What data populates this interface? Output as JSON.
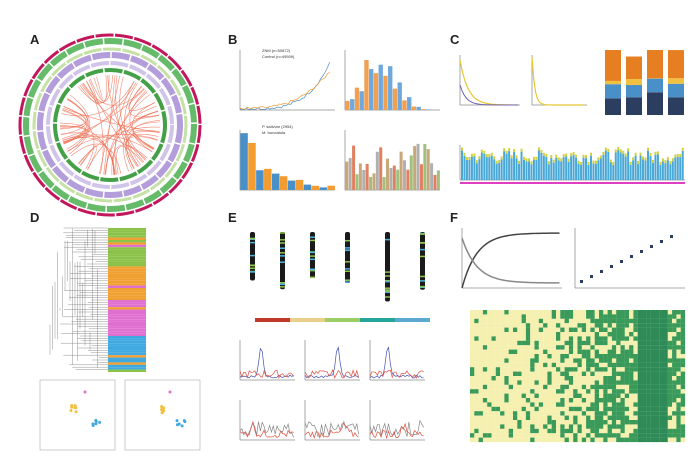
{
  "panels": [
    {
      "label": "A"
    },
    {
      "label": "B",
      "legends": [
        "ZNM (n=50872)",
        "Control (n=49509)",
        "P. sativum (2954)",
        "M. truncatula"
      ]
    },
    {
      "label": "C"
    },
    {
      "label": "D"
    },
    {
      "label": "E"
    },
    {
      "label": "F"
    }
  ]
}
